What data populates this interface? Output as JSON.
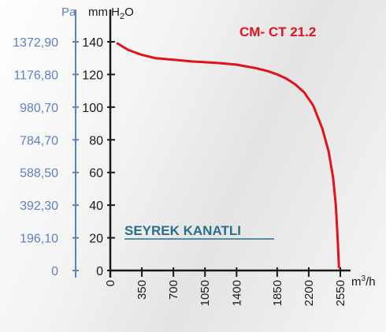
{
  "chart_data": {
    "type": "line",
    "title": "CM- CT 21.2",
    "annotation": "SEYREK KANATLI",
    "y_left_unit": "Pa",
    "y_right_unit": "mm H2O",
    "x_unit": "m³/h",
    "ylim": [
      0,
      140
    ],
    "xlim": [
      0,
      2550
    ],
    "pa_ticks": [
      "0",
      "196,10",
      "392,30",
      "588,50",
      "784,70",
      "980,70",
      "1176,80",
      "1372,90"
    ],
    "mm_ticks": [
      0,
      20,
      40,
      60,
      80,
      100,
      120,
      140
    ],
    "x_ticks": [
      0,
      350,
      700,
      1050,
      1400,
      1850,
      2200,
      2550
    ],
    "grid": false,
    "series": [
      {
        "name": "CM- CT 21.2",
        "color": "#e0121c",
        "x": [
          80,
          200,
          350,
          500,
          700,
          900,
          1050,
          1200,
          1400,
          1600,
          1750,
          1850,
          1950,
          2050,
          2150,
          2250,
          2350,
          2420,
          2470,
          2500,
          2520,
          2530,
          2535
        ],
        "y": [
          139,
          135,
          132,
          130,
          129,
          128,
          127.5,
          127,
          126,
          124,
          122,
          120,
          117.5,
          114,
          109,
          101,
          87,
          73,
          57,
          40,
          20,
          8,
          2
        ]
      }
    ]
  }
}
